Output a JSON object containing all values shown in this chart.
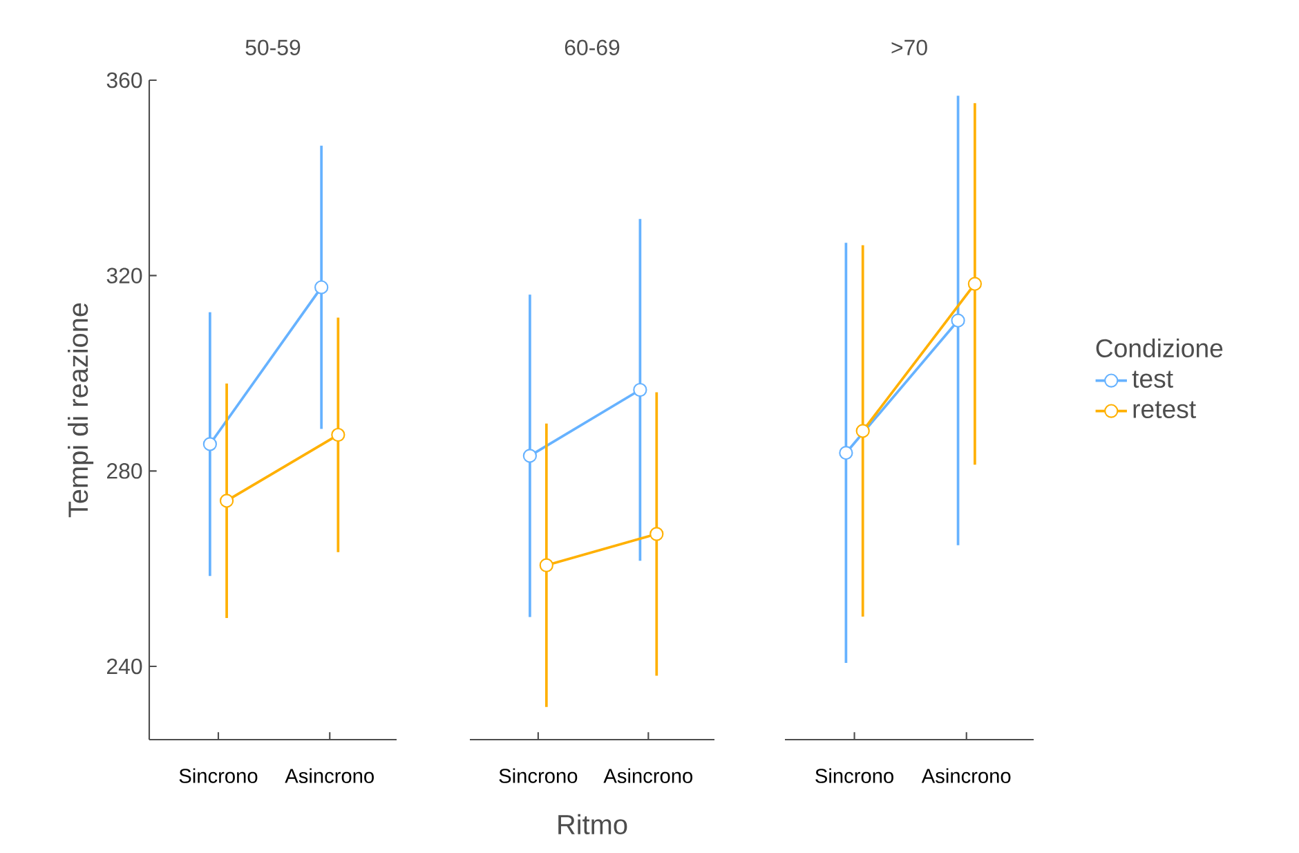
{
  "chart_data": [
    {
      "type": "line",
      "title": "50-59",
      "ylabel": "Tempi di reazione",
      "categories": [
        "Sincrono",
        "Asincrono"
      ],
      "ylim": [
        225,
        360
      ],
      "yticks": [
        240,
        280,
        320,
        360
      ],
      "marker": "circle",
      "series": [
        {
          "color": "#66b2ff",
          "values": [
            285.5,
            317.6
          ],
          "errors": [
            27,
            29
          ]
        },
        {
          "color": "#ffb000",
          "values": [
            273.9,
            287.4
          ],
          "errors": [
            24,
            24
          ]
        }
      ]
    },
    {
      "type": "line",
      "title": "60-69",
      "xlabel": "Ritmo",
      "categories": [
        "Sincrono",
        "Asincrono"
      ],
      "ylim": [
        225,
        360
      ],
      "yticks": [
        240,
        280,
        320,
        360
      ],
      "marker": "circle",
      "tick_labels": "x",
      "series": [
        {
          "color": "#66b2ff",
          "values": [
            283.1,
            296.6
          ],
          "errors": [
            33,
            35
          ]
        },
        {
          "color": "#ffb000",
          "values": [
            260.7,
            267.1
          ],
          "errors": [
            29,
            29
          ]
        }
      ]
    },
    {
      "type": "line",
      "title": ">70",
      "legend": "right",
      "legend_title": "Condizione",
      "categories": [
        "Sincrono",
        "Asincrono"
      ],
      "ylim": [
        225,
        360
      ],
      "yticks": [
        240,
        280,
        320,
        360
      ],
      "marker": "circle",
      "tick_labels": "x",
      "series": [
        {
          "name": "test",
          "color": "#66b2ff",
          "values": [
            283.7,
            310.8
          ],
          "errors": [
            43,
            46
          ]
        },
        {
          "name": "retest",
          "color": "#ffb000",
          "values": [
            288.2,
            318.3
          ],
          "errors": [
            38,
            37
          ]
        }
      ]
    }
  ]
}
